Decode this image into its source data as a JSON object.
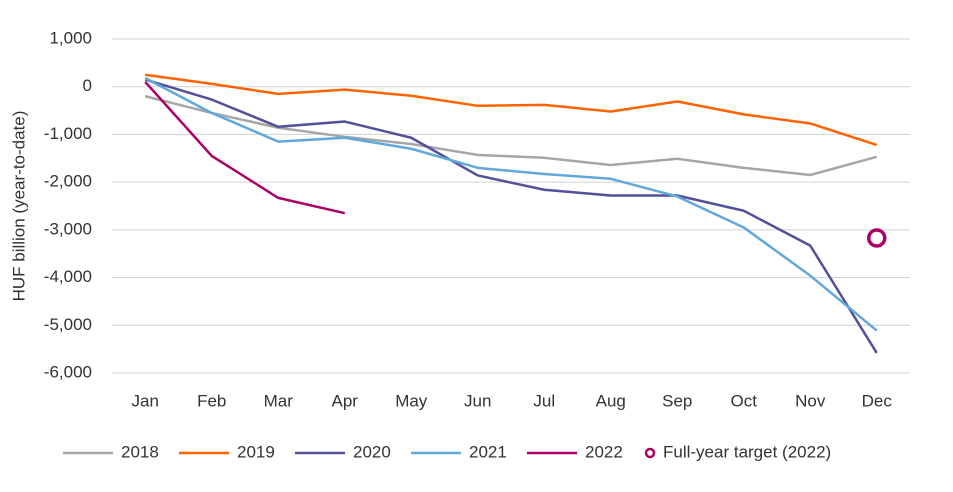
{
  "chart_data": {
    "type": "line",
    "y_label": "HUF billion (year-to-date)",
    "categories": [
      "Jan",
      "Feb",
      "Mar",
      "Apr",
      "May",
      "Jun",
      "Jul",
      "Aug",
      "Sep",
      "Oct",
      "Nov",
      "Dec"
    ],
    "series": [
      {
        "name": "2018",
        "color": "#a6a6a6",
        "values": [
          -200,
          -550,
          -860,
          -1050,
          -1200,
          -1430,
          -1490,
          -1640,
          -1510,
          -1700,
          -1850,
          -1470
        ]
      },
      {
        "name": "2019",
        "color": "#ff6200",
        "values": [
          250,
          60,
          -150,
          -60,
          -190,
          -400,
          -380,
          -520,
          -310,
          -580,
          -770,
          -1220
        ]
      },
      {
        "name": "2020",
        "color": "#525199",
        "values": [
          150,
          -270,
          -840,
          -730,
          -1070,
          -1860,
          -2160,
          -2280,
          -2280,
          -2600,
          -3330,
          -5580
        ]
      },
      {
        "name": "2021",
        "color": "#60a8dc",
        "values": [
          180,
          -550,
          -1150,
          -1070,
          -1300,
          -1700,
          -1830,
          -1930,
          -2300,
          -2950,
          -3960,
          -5110
        ]
      },
      {
        "name": "2022",
        "color": "#ab0066",
        "values": [
          100,
          -1450,
          -2330,
          -2650,
          null,
          null,
          null,
          null,
          null,
          null,
          null,
          null
        ]
      }
    ],
    "target": {
      "name": "Full-year target (2022)",
      "category": "Dec",
      "value": -3170,
      "color": "#ab0066"
    },
    "ylim": [
      -6000,
      1000
    ],
    "yticks": [
      {
        "value": -6000,
        "label": "-6,000"
      },
      {
        "value": -5000,
        "label": "-5,000"
      },
      {
        "value": -4000,
        "label": "-4,000"
      },
      {
        "value": -3000,
        "label": "-3,000"
      },
      {
        "value": -2000,
        "label": "-2,000"
      },
      {
        "value": -1000,
        "label": "-1,000"
      },
      0,
      {
        "value": 1000,
        "label": "1,000"
      }
    ],
    "grid": true,
    "legend": "bottom"
  }
}
